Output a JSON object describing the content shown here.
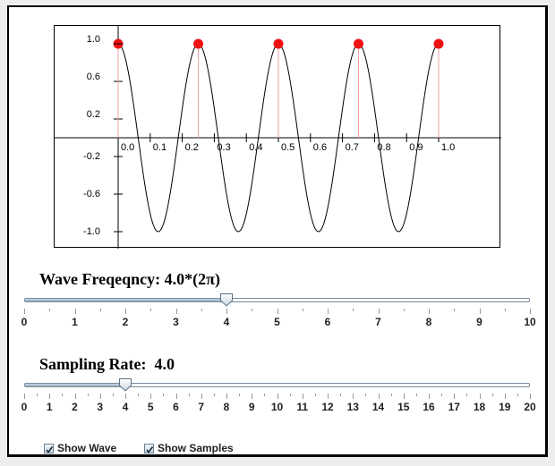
{
  "plot": {
    "y_ticks": [
      "1.0",
      "0.6",
      "0.2",
      "-0.2",
      "-0.6",
      "-1.0"
    ],
    "x_ticks": [
      "0.0",
      "0.1",
      "0.2",
      "0.3",
      "0.4",
      "0.5",
      "0.6",
      "0.7",
      "0.8",
      "0.9",
      "1.0"
    ],
    "wave_color": "#000000",
    "sample_color": "#ee1111",
    "stem_color": "#f0a0a0"
  },
  "chart_data": {
    "type": "line",
    "title": "",
    "xlabel": "",
    "ylabel": "",
    "xlim": [
      -0.2,
      1.2
    ],
    "ylim": [
      -1.15,
      1.2
    ],
    "grid": false,
    "series": [
      {
        "name": "wave",
        "function": "cos(2*pi*4.0*t)",
        "frequency": 4.0,
        "t_range": [
          0,
          1.0
        ]
      },
      {
        "name": "samples",
        "type": "stem",
        "x": [
          0.0,
          0.25,
          0.5,
          0.75,
          1.0
        ],
        "values": [
          1.0,
          1.0,
          1.0,
          1.0,
          1.0
        ]
      }
    ],
    "x_tick_labels": [
      "0.0",
      "0.1",
      "0.2",
      "0.3",
      "0.4",
      "0.5",
      "0.6",
      "0.7",
      "0.8",
      "0.9",
      "1.0"
    ],
    "y_tick_labels": [
      "1.0",
      "0.6",
      "0.2",
      "-0.2",
      "-0.6",
      "-1.0"
    ]
  },
  "frequency_slider": {
    "label": "Wave Freqeqncy: 4.0*(2π)",
    "min": 0,
    "max": 10,
    "value": 4.0,
    "major_labels": [
      "0",
      "1",
      "2",
      "3",
      "4",
      "5",
      "6",
      "7",
      "8",
      "9",
      "10"
    ]
  },
  "sampling_slider": {
    "label": "Sampling Rate:  4.0",
    "min": 0,
    "max": 20,
    "value": 4.0,
    "major_labels": [
      "0",
      "1",
      "2",
      "3",
      "4",
      "5",
      "6",
      "7",
      "8",
      "9",
      "10",
      "11",
      "12",
      "13",
      "14",
      "15",
      "16",
      "17",
      "18",
      "19",
      "20"
    ]
  },
  "checkboxes": [
    {
      "label": "Show Wave",
      "checked": true
    },
    {
      "label": "Show Samples",
      "checked": true
    }
  ]
}
